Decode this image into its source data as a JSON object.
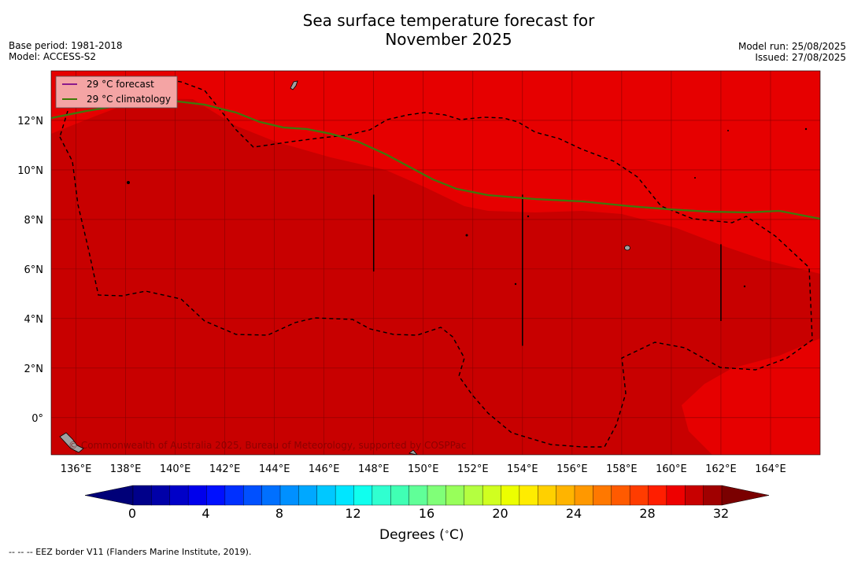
{
  "title": {
    "line1": "Sea surface temperature forecast for",
    "line2": "November 2025"
  },
  "meta": {
    "base_period": "Base period: 1981-2018",
    "model": "Model: ACCESS-S2",
    "model_run": "Model run: 25/08/2025",
    "issued": "Issued: 27/08/2025"
  },
  "legend": [
    {
      "label": "29 °C  forecast",
      "color": "#8b1a8b"
    },
    {
      "label": "29 °C  climatology",
      "color": "#3f7a06"
    }
  ],
  "copyright": "© Commonwealth of Australia 2025, Bureau of Meteorology, supported by COSPPac",
  "map": {
    "lon_range": [
      135,
      166
    ],
    "lat_range": [
      -1.5,
      14
    ],
    "lon_ticks": [
      "136°E",
      "138°E",
      "140°E",
      "142°E",
      "144°E",
      "146°E",
      "148°E",
      "150°E",
      "152°E",
      "154°E",
      "156°E",
      "158°E",
      "160°E",
      "162°E",
      "164°E"
    ],
    "lat_ticks": [
      "0°",
      "2°N",
      "4°N",
      "6°N",
      "8°N",
      "10°N",
      "12°N"
    ],
    "colors": {
      "above_30": "#c80000",
      "29_30": "#e60000",
      "land": "#a0a0a0"
    }
  },
  "colorbar": {
    "tick_labels": [
      "0",
      "4",
      "8",
      "12",
      "16",
      "20",
      "24",
      "28",
      "32"
    ],
    "label_prefix": "Degrees (",
    "label_unit": "C",
    "label_suffix": ")",
    "colors": [
      "#00008a",
      "#0000a8",
      "#0000c8",
      "#0000ec",
      "#0010ff",
      "#0030ff",
      "#0050ff",
      "#0070ff",
      "#0090ff",
      "#00a8ff",
      "#00c8ff",
      "#00e6ff",
      "#10ffee",
      "#30ffd0",
      "#40ffb4",
      "#60ff98",
      "#80ff78",
      "#98ff5a",
      "#b4ff40",
      "#d0ff20",
      "#ecff00",
      "#ffec00",
      "#ffd000",
      "#ffb400",
      "#ff9800",
      "#ff7800",
      "#ff5a00",
      "#ff3c00",
      "#ff1e00",
      "#ee0000",
      "#c80000",
      "#a00000"
    ],
    "under_color": "#000078",
    "over_color": "#7a0000"
  },
  "footnote": "--  --  -- EEZ border V11 (Flanders Marine Institute, 2019)."
}
